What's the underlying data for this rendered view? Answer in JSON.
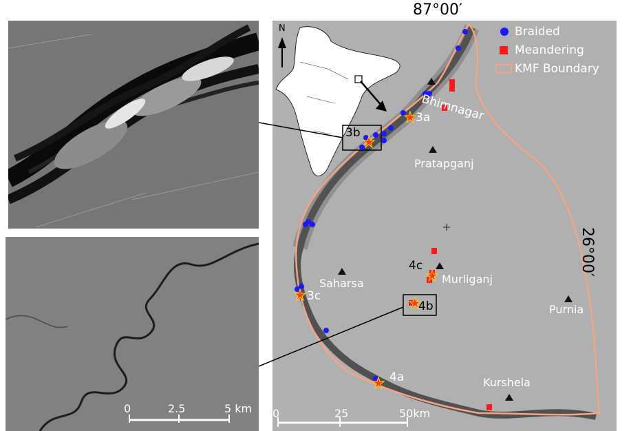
{
  "coords": {
    "top_longitude": "87°00′",
    "right_latitude": "26°00′"
  },
  "north_arrow": "N",
  "legend": {
    "braided": "Braided",
    "meandering": "Meandering",
    "boundary": "KMF Boundary",
    "colors": {
      "braided": "#1a1aff",
      "meandering": "#ff1a1a",
      "boundary": "#f4a582"
    }
  },
  "places": {
    "bhimnagar": "Bhimnagar",
    "pratapganj": "Pratapganj",
    "saharsa": "Saharsa",
    "murliganj": "Murliganj",
    "purnia": "Purnia",
    "kurshela": "Kurshela"
  },
  "sites": {
    "s3a": "3a",
    "s3b": "3b",
    "s3c": "3c",
    "s4a": "4a",
    "s4b": "4b",
    "s4c": "4c"
  },
  "scale_main": {
    "t0": "0",
    "t1": "25",
    "t2": "50km"
  },
  "scale_inset": {
    "t0": "0",
    "t1": "2.5",
    "t2": "5 km"
  }
}
